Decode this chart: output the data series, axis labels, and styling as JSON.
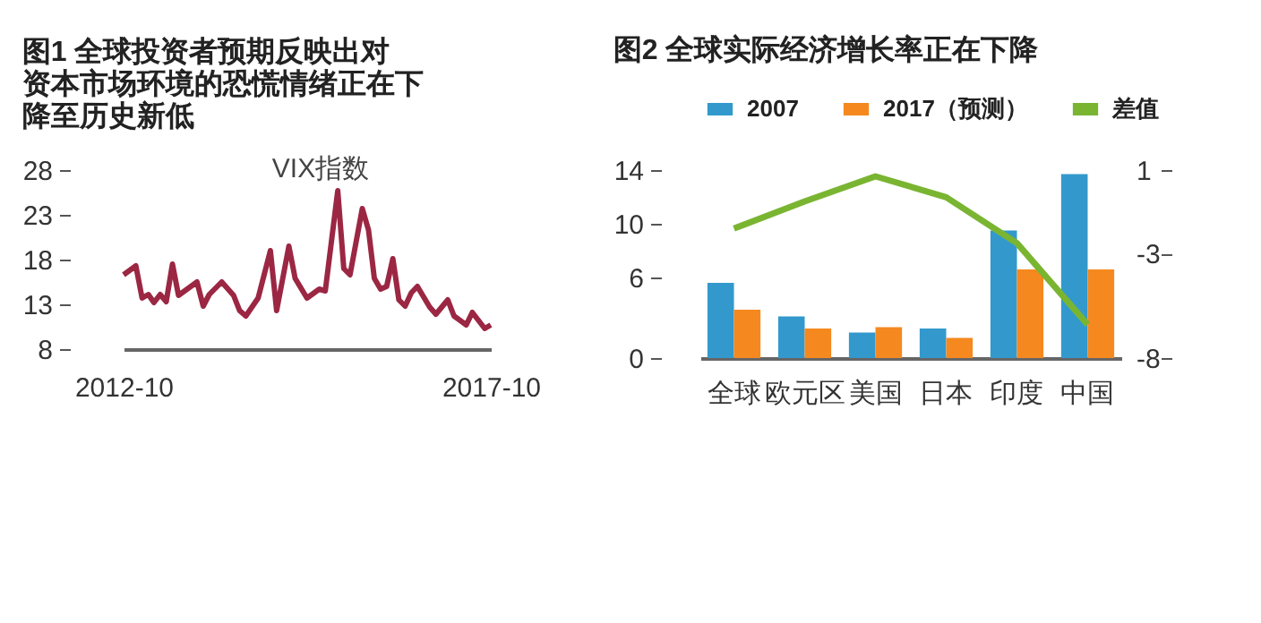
{
  "chart_data": [
    {
      "type": "line",
      "title": "图1 全球投资者预期反映出对资本市场环境的恐慌情绪正在下降至历史新低",
      "x": [
        "2012-10",
        "2012-12",
        "2013-01",
        "2013-02",
        "2013-03",
        "2013-04",
        "2013-05",
        "2013-06",
        "2013-07",
        "2013-10",
        "2013-11",
        "2013-12",
        "2014-02",
        "2014-04",
        "2014-05",
        "2014-06",
        "2014-08",
        "2014-10",
        "2014-11",
        "2015-01",
        "2015-02",
        "2015-04",
        "2015-06",
        "2015-07",
        "2015-09",
        "2015-10",
        "2015-11",
        "2016-01",
        "2016-02",
        "2016-03",
        "2016-04",
        "2016-05",
        "2016-06",
        "2016-07",
        "2016-08",
        "2016-09",
        "2016-10",
        "2016-12",
        "2017-01",
        "2017-03",
        "2017-04",
        "2017-06",
        "2017-07",
        "2017-09",
        "2017-10"
      ],
      "series": [
        {
          "name": "VIX指数",
          "color": "#9b2743",
          "values": [
            16.3,
            17.3,
            13.7,
            14.1,
            13.2,
            14.1,
            13.3,
            17.5,
            14.0,
            15.5,
            12.8,
            14.1,
            15.5,
            14.0,
            12.3,
            11.7,
            13.7,
            19.0,
            12.3,
            19.5,
            15.9,
            13.7,
            14.7,
            14.5,
            25.7,
            17.0,
            16.3,
            23.7,
            21.3,
            15.9,
            14.7,
            15.0,
            18.1,
            13.5,
            12.8,
            14.3,
            15.0,
            12.7,
            11.9,
            13.5,
            11.7,
            10.7,
            12.1,
            10.3,
            10.7
          ]
        }
      ],
      "xlim": [
        "2012-10",
        "2017-10"
      ],
      "xticks": [
        "2012-10",
        "2017-10"
      ],
      "ylim": [
        8,
        28
      ],
      "yticks": [
        8,
        13,
        18,
        23,
        28
      ],
      "grid": false
    },
    {
      "type": "bar",
      "title": "图2 全球实际经济增长率正在下降",
      "categories": [
        "全球",
        "欧元区",
        "美国",
        "日本",
        "印度",
        "中国"
      ],
      "series": [
        {
          "name": "2007",
          "color": "#3399cc",
          "values": [
            5.6,
            3.1,
            1.9,
            2.2,
            9.5,
            13.7
          ]
        },
        {
          "name": "2017（预测）",
          "color": "#f5891f",
          "values": [
            3.6,
            2.2,
            2.3,
            1.5,
            6.6,
            6.6
          ]
        },
        {
          "name": "差值",
          "type": "line",
          "axis": "y2",
          "color": "#7ab532",
          "values": [
            -1.8,
            -0.5,
            0.7,
            -0.3,
            -2.5,
            -6.4
          ]
        }
      ],
      "ylim": [
        0,
        14
      ],
      "yticks": [
        0,
        6,
        10,
        14
      ],
      "y2lim": [
        -8,
        1
      ],
      "y2ticks": [
        -8,
        -3,
        1
      ],
      "legend": "top",
      "grid": false
    }
  ]
}
